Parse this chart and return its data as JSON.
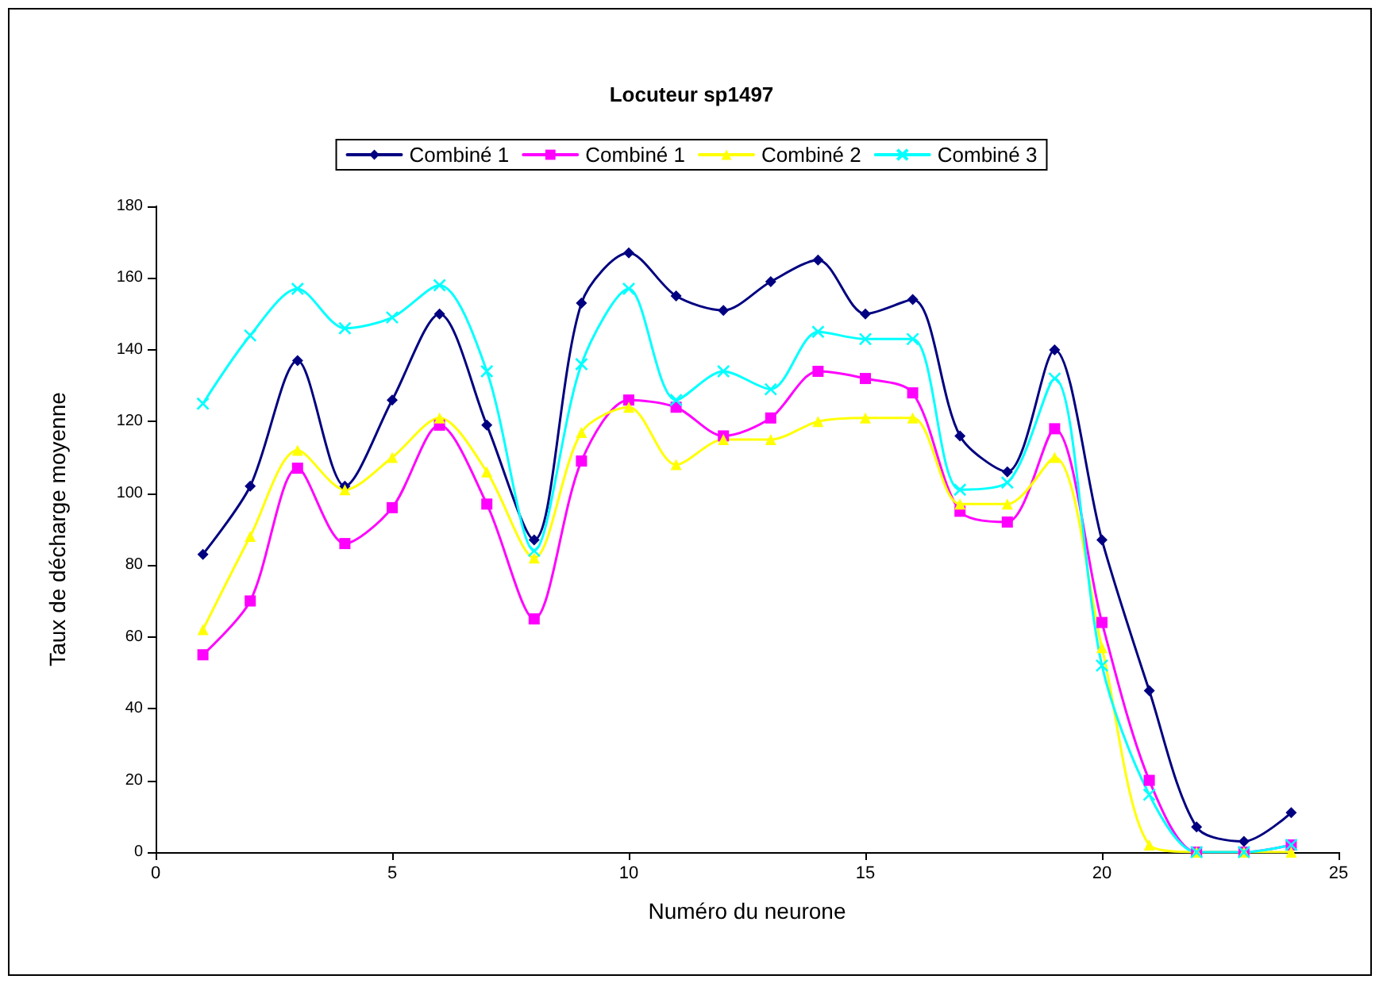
{
  "chart_data": {
    "type": "line",
    "title": "Locuteur sp1497",
    "xlabel": "Numéro du neurone",
    "ylabel": "Taux de décharge moyenne",
    "x": [
      1,
      2,
      3,
      4,
      5,
      6,
      7,
      8,
      9,
      10,
      11,
      12,
      13,
      14,
      15,
      16,
      17,
      18,
      19,
      20,
      21,
      22,
      23,
      24
    ],
    "xlim": [
      0,
      25
    ],
    "xticks": [
      0,
      5,
      10,
      15,
      20,
      25
    ],
    "ylim": [
      0,
      180
    ],
    "yticks": [
      0,
      20,
      40,
      60,
      80,
      100,
      120,
      140,
      160,
      180
    ],
    "grid": false,
    "legend": "top",
    "series": [
      {
        "name": "Combiné 1",
        "color": "#000080",
        "marker": "diamond",
        "values": [
          83,
          102,
          137,
          102,
          126,
          150,
          119,
          87,
          153,
          167,
          155,
          151,
          159,
          165,
          150,
          154,
          116,
          106,
          140,
          87,
          45,
          7,
          3,
          11
        ]
      },
      {
        "name": "Combiné 1",
        "color": "#ff00ff",
        "marker": "square",
        "values": [
          55,
          70,
          107,
          86,
          96,
          119,
          97,
          65,
          109,
          126,
          124,
          116,
          121,
          134,
          132,
          128,
          95,
          92,
          118,
          64,
          20,
          0,
          0,
          2
        ]
      },
      {
        "name": "Combiné 2",
        "color": "#ffff00",
        "marker": "triangle",
        "values": [
          62,
          88,
          112,
          101,
          110,
          121,
          106,
          82,
          117,
          124,
          108,
          115,
          115,
          120,
          121,
          121,
          97,
          97,
          110,
          57,
          2,
          0,
          0,
          0
        ]
      },
      {
        "name": "Combiné 3",
        "color": "#00ffff",
        "marker": "cross",
        "values": [
          125,
          144,
          157,
          146,
          149,
          158,
          134,
          84,
          136,
          157,
          126,
          134,
          129,
          145,
          143,
          143,
          101,
          103,
          132,
          52,
          16,
          0,
          0,
          2
        ]
      }
    ]
  }
}
